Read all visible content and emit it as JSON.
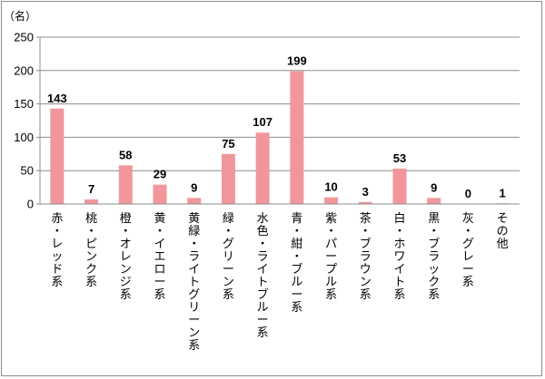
{
  "chart_data": {
    "type": "bar",
    "unit_label": "（名）",
    "categories": [
      "赤・レッド系",
      "桃・ピンク系",
      "橙・オレンジ系",
      "黄・イエロー系",
      "黄緑・ライトグリーン系",
      "緑・グリーン系",
      "水色・ライトブルー系",
      "青・紺・ブルー系",
      "紫・パープル系",
      "茶・ブラウン系",
      "白・ホワイト系",
      "黒・ブラック系",
      "灰・グレー系",
      "その他"
    ],
    "values": [
      143,
      7,
      58,
      29,
      9,
      75,
      107,
      199,
      10,
      3,
      53,
      9,
      0,
      1
    ],
    "y_ticks": [
      0,
      50,
      100,
      150,
      200,
      250
    ],
    "ylim": [
      0,
      250
    ],
    "grid": true,
    "legend": "none",
    "colors": {
      "bar": "#f1979b",
      "grid": "#8c8c8c",
      "axis": "#8c8c8c"
    }
  }
}
